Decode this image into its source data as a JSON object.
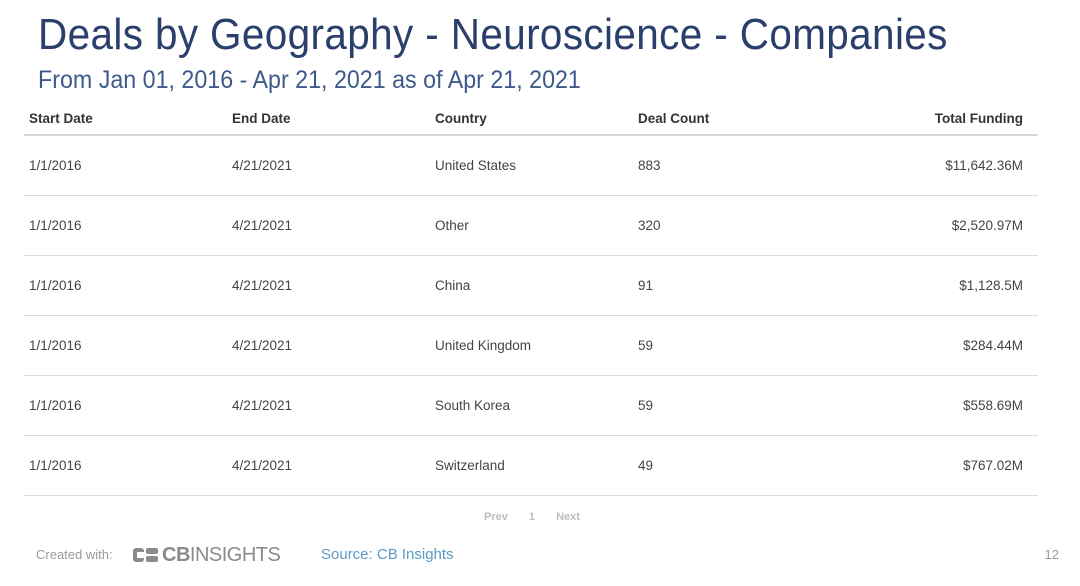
{
  "header": {
    "title": "Deals by Geography - Neuroscience - Companies",
    "subtitle": "From Jan 01, 2016 - Apr 21, 2021 as of Apr 21, 2021"
  },
  "table": {
    "columns": [
      "Start Date",
      "End Date",
      "Country",
      "Deal Count",
      "Total Funding"
    ],
    "rows": [
      [
        "1/1/2016",
        "4/21/2021",
        "United States",
        "883",
        "$11,642.36M"
      ],
      [
        "1/1/2016",
        "4/21/2021",
        "Other",
        "320",
        "$2,520.97M"
      ],
      [
        "1/1/2016",
        "4/21/2021",
        "China",
        "91",
        "$1,128.5M"
      ],
      [
        "1/1/2016",
        "4/21/2021",
        "United Kingdom",
        "59",
        "$284.44M"
      ],
      [
        "1/1/2016",
        "4/21/2021",
        "South Korea",
        "59",
        "$558.69M"
      ],
      [
        "1/1/2016",
        "4/21/2021",
        "Switzerland",
        "49",
        "$767.02M"
      ]
    ]
  },
  "pager": {
    "prev": "Prev",
    "page": "1",
    "next": "Next"
  },
  "footer": {
    "created_with": "Created with:",
    "logo_text_bold": "CB",
    "logo_text_rest": "INSIGHTS",
    "source": "Source: CB Insights",
    "page_number": "12"
  }
}
